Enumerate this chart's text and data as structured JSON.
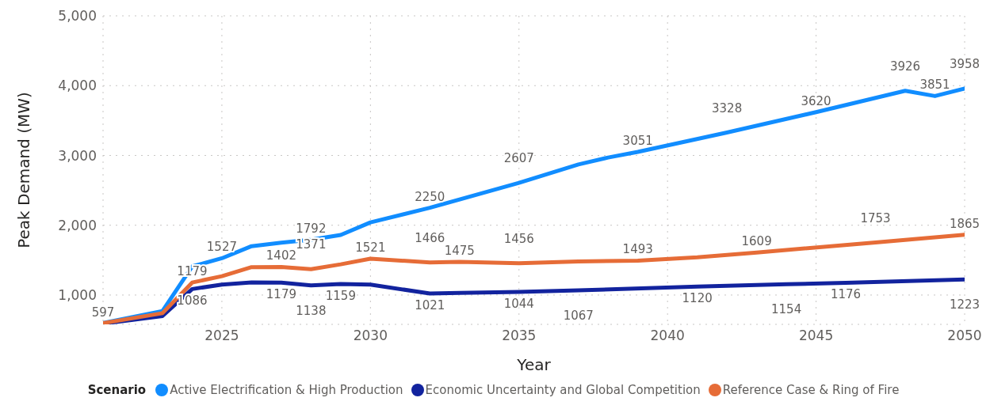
{
  "chart_data": {
    "type": "line",
    "xlabel": "Year",
    "ylabel": "Peak Demand (MW)",
    "legend_title": "Scenario",
    "legend": "bottom",
    "grid": true,
    "line_style": "solid",
    "marker": "none",
    "xlim": [
      2021,
      2050
    ],
    "xticks": [
      2025,
      2030,
      2035,
      2040,
      2045,
      2050
    ],
    "ylim": [
      580,
      5000
    ],
    "yticks": [
      {
        "value": 1000,
        "label": "1,000"
      },
      {
        "value": 2000,
        "label": "2,000"
      },
      {
        "value": 3000,
        "label": "3,000"
      },
      {
        "value": 4000,
        "label": "4,000"
      },
      {
        "value": 5000,
        "label": "5,000"
      }
    ],
    "series": [
      {
        "name": "Active Electrification & High Production",
        "color": "#118dff",
        "x": [
          2021,
          2023,
          2024,
          2025,
          2026,
          2027,
          2028,
          2029,
          2030,
          2032,
          2035,
          2037,
          2038,
          2039,
          2042,
          2045,
          2048,
          2049,
          2050
        ],
        "values": [
          600,
          770,
          1410,
          1527,
          1700,
          1750,
          1792,
          1860,
          2040,
          2250,
          2607,
          2870,
          2970,
          3051,
          3328,
          3620,
          3926,
          3851,
          3958
        ],
        "value_labels": [
          null,
          null,
          null,
          "1527",
          null,
          null,
          "1792",
          null,
          null,
          "2250",
          "2607",
          null,
          null,
          "3051",
          "3328",
          "3620",
          "3926",
          "3851",
          "3958"
        ]
      },
      {
        "name": "Economic Uncertainty and Global Competition",
        "color": "#12239e",
        "x": [
          2021,
          2023,
          2024,
          2025,
          2026,
          2027,
          2028,
          2029,
          2030,
          2032,
          2033,
          2035,
          2037,
          2041,
          2044,
          2046,
          2050
        ],
        "values": [
          590,
          700,
          1086,
          1150,
          1180,
          1179,
          1138,
          1159,
          1150,
          1021,
          1030,
          1044,
          1067,
          1120,
          1154,
          1176,
          1223
        ],
        "value_labels": [
          null,
          null,
          "1086",
          null,
          null,
          "1179",
          "1138",
          "1159",
          null,
          "1021",
          null,
          "1044",
          "1067",
          "1120",
          "1154",
          "1176",
          "1223"
        ]
      },
      {
        "name": "Reference Case & Ring of Fire",
        "color": "#e66c37",
        "x": [
          2021,
          2023,
          2024,
          2025,
          2026,
          2027,
          2028,
          2029,
          2030,
          2032,
          2033,
          2035,
          2037,
          2039,
          2041,
          2043,
          2047,
          2050
        ],
        "values": [
          597,
          740,
          1179,
          1270,
          1400,
          1402,
          1371,
          1440,
          1521,
          1466,
          1475,
          1456,
          1480,
          1493,
          1540,
          1609,
          1753,
          1865
        ],
        "value_labels": [
          "597",
          null,
          "1179",
          null,
          null,
          "1402",
          "1371",
          null,
          "1521",
          "1466",
          "1475",
          "1456",
          null,
          "1493",
          null,
          "1609",
          "1753",
          "1865"
        ]
      }
    ]
  }
}
